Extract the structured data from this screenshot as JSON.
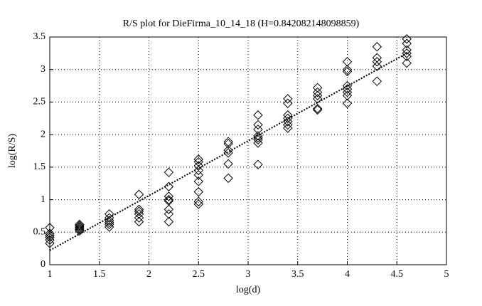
{
  "chart_data": {
    "type": "scatter",
    "title": "R/S plot for DieFirma_10_14_18 (H=0.842082148098859)",
    "x_label": "log(d)",
    "y_label": "log(R/S)",
    "xlim": [
      1,
      5
    ],
    "ylim": [
      0,
      3.5
    ],
    "xticks": [
      1,
      1.5,
      2,
      2.5,
      3,
      3.5,
      4,
      4.5,
      5
    ],
    "yticks": [
      0,
      0.5,
      1,
      1.5,
      2,
      2.5,
      3,
      3.5
    ],
    "grid": true,
    "color": "#000000",
    "x": [
      1,
      1,
      1,
      1,
      1,
      1,
      1.3,
      1.3,
      1.3,
      1.3,
      1.3,
      1.3,
      1.6,
      1.6,
      1.6,
      1.6,
      1.6,
      1.6,
      1.9,
      1.9,
      1.9,
      1.9,
      1.9,
      1.9,
      2.2,
      2.2,
      2.2,
      2.2,
      2.2,
      2.2,
      2.2,
      2.2,
      2.5,
      2.5,
      2.5,
      2.5,
      2.5,
      2.5,
      2.5,
      2.5,
      2.5,
      2.8,
      2.8,
      2.8,
      2.8,
      2.8,
      2.8,
      3.1,
      3.1,
      3.1,
      3.1,
      3.1,
      3.1,
      3.1,
      3.1,
      3.4,
      3.4,
      3.4,
      3.4,
      3.4,
      3.4,
      3.4,
      3.7,
      3.7,
      3.7,
      3.7,
      3.7,
      3.7,
      4.0,
      4.0,
      4.0,
      4.0,
      4.0,
      4.0,
      4.0,
      4.0,
      4.3,
      4.3,
      4.3,
      4.3,
      4.3,
      4.6,
      4.6,
      4.6,
      4.6,
      4.6,
      4.6
    ],
    "values": [
      0.57,
      0.48,
      0.45,
      0.42,
      0.38,
      0.33,
      0.62,
      0.6,
      0.58,
      0.56,
      0.54,
      0.52,
      0.78,
      0.72,
      0.68,
      0.65,
      0.62,
      0.58,
      1.08,
      0.85,
      0.82,
      0.78,
      0.72,
      0.66,
      1.42,
      1.2,
      1.05,
      1.0,
      0.98,
      0.85,
      0.78,
      0.66,
      1.62,
      1.58,
      1.52,
      1.45,
      1.38,
      1.28,
      1.12,
      0.97,
      0.93,
      1.89,
      1.86,
      1.76,
      1.72,
      1.55,
      1.33,
      2.3,
      2.15,
      2.08,
      1.98,
      1.95,
      1.92,
      1.87,
      1.54,
      2.55,
      2.48,
      2.3,
      2.25,
      2.2,
      2.15,
      2.1,
      2.72,
      2.65,
      2.6,
      2.55,
      2.4,
      2.38,
      3.12,
      3.0,
      2.97,
      2.75,
      2.7,
      2.65,
      2.6,
      2.48,
      3.35,
      3.18,
      3.12,
      3.05,
      2.82,
      3.47,
      3.4,
      3.3,
      3.25,
      3.2,
      3.1
    ],
    "fit_line": {
      "x": [
        1,
        4.6
      ],
      "values": [
        0.22,
        3.25
      ]
    }
  }
}
